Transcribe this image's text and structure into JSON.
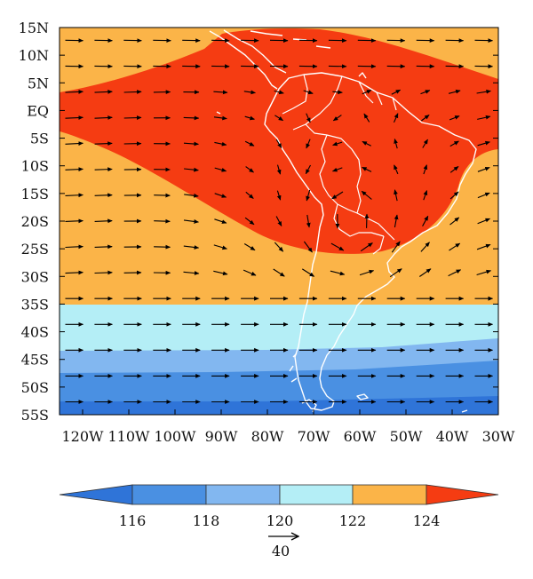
{
  "map": {
    "lat_labels": [
      "15N",
      "10N",
      "5N",
      "EQ",
      "5S",
      "10S",
      "15S",
      "20S",
      "25S",
      "30S",
      "35S",
      "40S",
      "45S",
      "50S",
      "55S"
    ],
    "lon_labels": [
      "120W",
      "110W",
      "100W",
      "90W",
      "80W",
      "70W",
      "60W",
      "50W",
      "40W",
      "30W"
    ],
    "lat_range": [
      -55,
      15
    ],
    "lon_range": [
      -125,
      -30
    ],
    "field_colors": {
      "below_116": "#2f74d8",
      "116_118": "#4a90e2",
      "118_120": "#82b7f0",
      "120_122": "#b4eef6",
      "122_124": "#fbb448",
      "above_124": "#f53c12"
    },
    "coastline_color": "#ffffff",
    "vectors_color": "#000000"
  },
  "colorbar": {
    "levels": [
      "116",
      "118",
      "120",
      "122",
      "124"
    ],
    "colors": [
      "#2f74d8",
      "#4a90e2",
      "#82b7f0",
      "#b4eef6",
      "#fbb448",
      "#f53c12"
    ]
  },
  "reference_vector": {
    "label": "40"
  }
}
